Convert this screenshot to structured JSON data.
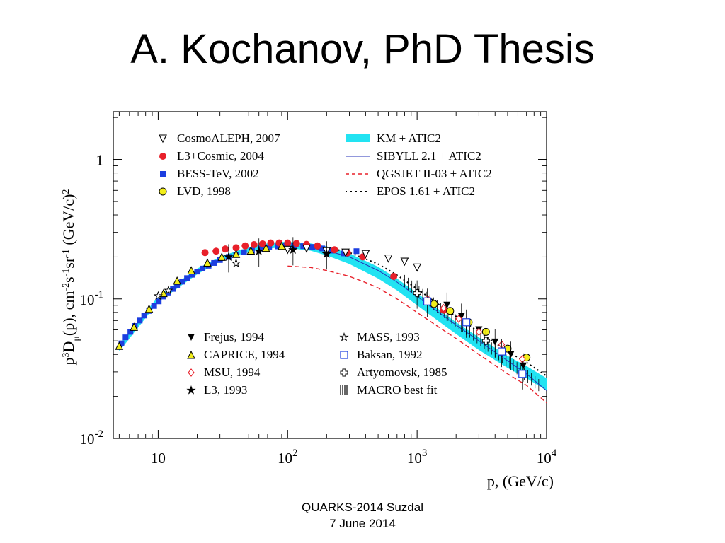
{
  "slide": {
    "title": "A. Kochanov, PhD Thesis",
    "footer_line1": "QUARKS-2014  Suzdal",
    "footer_line2": "7 June 2014"
  },
  "chart_data": {
    "type": "scatter",
    "xscale": "log",
    "yscale": "log",
    "xlim": [
      4.5,
      10000
    ],
    "ylim": [
      0.01,
      2.2
    ],
    "xticks": [
      {
        "value": 10,
        "base": "10",
        "exp": ""
      },
      {
        "value": 100,
        "base": "10",
        "exp": "2"
      },
      {
        "value": 1000,
        "base": "10",
        "exp": "3"
      },
      {
        "value": 10000,
        "base": "10",
        "exp": "4"
      }
    ],
    "yticks": [
      {
        "value": 1,
        "base": "1",
        "exp": ""
      },
      {
        "value": 0.1,
        "base": "10",
        "exp": "-1"
      },
      {
        "value": 0.01,
        "base": "10",
        "exp": "-2"
      }
    ],
    "xlabel": "p, (GeV/c)",
    "ylabel": {
      "p1": "p",
      "s1": "3",
      "p2": "D",
      "s2": "μ",
      "p3": "(p), cm",
      "s3": "-2",
      "p4": "s",
      "s4": "-1",
      "p5": "sr",
      "s5": "-1",
      "p6": " (GeV/c)",
      "s6": "2"
    },
    "legend_top_left": [
      {
        "label": "CosmoALEPH, 2007",
        "marker": "tri-down-open",
        "color": "#000000"
      },
      {
        "label": "L3+Cosmic, 2004",
        "marker": "circle",
        "color": "#e8202a"
      },
      {
        "label": "BESS-TeV, 2002",
        "marker": "square",
        "color": "#1c3ee0"
      },
      {
        "label": "LVD, 1998",
        "marker": "circle-yellow",
        "color": "#f2ee1a"
      }
    ],
    "legend_top_right": [
      {
        "label": "KM + ATIC2",
        "style": "band",
        "color": "#22e3f2"
      },
      {
        "label": "SIBYLL 2.1 + ATIC2",
        "style": "solid",
        "color": "#2430b8"
      },
      {
        "label": "QGSJET II-03 + ATIC2",
        "style": "dashed",
        "color": "#e8202a"
      },
      {
        "label": "EPOS 1.61 + ATIC2",
        "style": "dotted",
        "color": "#000000"
      }
    ],
    "legend_bottom_left": [
      {
        "label": "Frejus, 1994",
        "marker": "tri-down-filled",
        "color": "#000000"
      },
      {
        "label": "CAPRICE, 1994",
        "marker": "tri-up-yellow",
        "color": "#f2ee1a"
      },
      {
        "label": "MSU, 1994",
        "marker": "diamond-open",
        "color": "#e8202a"
      },
      {
        "label": "L3, 1993",
        "marker": "star-filled",
        "color": "#000000"
      }
    ],
    "legend_bottom_right": [
      {
        "label": "MASS, 1993",
        "marker": "star-open",
        "color": "#000000"
      },
      {
        "label": "Baksan, 1992",
        "marker": "square-open",
        "color": "#1c3ee0"
      },
      {
        "label": "Artyomovsk, 1985",
        "marker": "cross-open",
        "color": "#000000"
      },
      {
        "label": "MACRO best fit",
        "marker": "vlines",
        "color": "#000000"
      }
    ],
    "curves": {
      "km_band": {
        "x": [
          5,
          10,
          20,
          30,
          40,
          60,
          80,
          100,
          150,
          200,
          300,
          500,
          700,
          1000,
          1500,
          2000,
          3000,
          5000,
          7000,
          10000
        ],
        "ylow": [
          0.042,
          0.095,
          0.15,
          0.185,
          0.205,
          0.225,
          0.232,
          0.232,
          0.222,
          0.205,
          0.178,
          0.14,
          0.115,
          0.09,
          0.068,
          0.056,
          0.043,
          0.032,
          0.027,
          0.022
        ],
        "yhigh": [
          0.047,
          0.104,
          0.165,
          0.2,
          0.22,
          0.245,
          0.255,
          0.257,
          0.25,
          0.238,
          0.212,
          0.17,
          0.14,
          0.11,
          0.083,
          0.068,
          0.053,
          0.039,
          0.033,
          0.027
        ]
      },
      "sibyll": {
        "x": [
          100,
          150,
          200,
          300,
          500,
          700,
          1000,
          1500,
          2000,
          3000,
          5000,
          7000,
          10000
        ],
        "y": [
          0.24,
          0.232,
          0.222,
          0.2,
          0.16,
          0.132,
          0.104,
          0.079,
          0.065,
          0.05,
          0.036,
          0.029,
          0.022
        ]
      },
      "qgsjet": {
        "x": [
          100,
          150,
          200,
          300,
          400,
          500,
          700,
          1000,
          1500,
          2000,
          3000,
          5000,
          7000,
          10000
        ],
        "y": [
          0.172,
          0.168,
          0.16,
          0.145,
          0.131,
          0.12,
          0.1,
          0.08,
          0.062,
          0.052,
          0.04,
          0.029,
          0.024,
          0.018
        ]
      },
      "epos": {
        "x": [
          100,
          150,
          200,
          300,
          500,
          700,
          1000,
          1500,
          2000,
          3000,
          5000,
          7000,
          10000
        ],
        "y": [
          0.25,
          0.243,
          0.235,
          0.215,
          0.178,
          0.148,
          0.118,
          0.09,
          0.075,
          0.058,
          0.042,
          0.035,
          0.028
        ]
      }
    },
    "series": [
      {
        "name": "BESS-TeV, 2002",
        "marker": "square",
        "color": "#1c3ee0",
        "x": [
          5.2,
          5.6,
          6.1,
          6.6,
          7.2,
          7.8,
          8.5,
          9.3,
          10.1,
          11,
          12,
          13,
          14,
          15.3,
          16.7,
          18.2,
          20,
          22,
          24.5,
          27,
          30,
          35,
          40,
          46,
          53,
          62,
          72,
          84,
          97,
          112,
          132,
          155,
          185,
          220,
          270,
          340
        ],
        "y": [
          0.048,
          0.053,
          0.058,
          0.064,
          0.07,
          0.076,
          0.082,
          0.089,
          0.096,
          0.104,
          0.111,
          0.118,
          0.126,
          0.133,
          0.141,
          0.149,
          0.157,
          0.165,
          0.173,
          0.181,
          0.19,
          0.2,
          0.208,
          0.216,
          0.222,
          0.229,
          0.234,
          0.238,
          0.24,
          0.241,
          0.239,
          0.236,
          0.23,
          0.222,
          0.212,
          0.22
        ]
      },
      {
        "name": "L3+Cosmic, 2004",
        "marker": "circle",
        "color": "#e8202a",
        "x": [
          23,
          28,
          33,
          40,
          47,
          55,
          64,
          74,
          86,
          100,
          117,
          140,
          170,
          230,
          290,
          380,
          660,
          1600
        ],
        "y": [
          0.215,
          0.22,
          0.228,
          0.233,
          0.24,
          0.245,
          0.248,
          0.252,
          0.252,
          0.252,
          0.25,
          0.246,
          0.24,
          0.225,
          0.214,
          0.2,
          0.145,
          0.083
        ]
      },
      {
        "name": "CosmoALEPH, 2007",
        "marker": "tri-down-open",
        "color": "#000000",
        "x": [
          100,
          140,
          200,
          280,
          400,
          600,
          800,
          1000
        ],
        "y": [
          0.225,
          0.23,
          0.22,
          0.215,
          0.21,
          0.195,
          0.185,
          0.168
        ]
      },
      {
        "name": "LVD, 1998",
        "marker": "circle-yellow",
        "color": "#f2ee1a",
        "x": [
          1350,
          1800,
          2500,
          3400,
          5000,
          7000
        ],
        "y": [
          0.092,
          0.082,
          0.068,
          0.058,
          0.044,
          0.038
        ]
      },
      {
        "name": "CAPRICE, 1994",
        "marker": "tri-up-yellow",
        "color": "#f2ee1a",
        "x": [
          5,
          6.5,
          8.5,
          11,
          14,
          18,
          24,
          31,
          40,
          52,
          68,
          90
        ],
        "y": [
          0.046,
          0.063,
          0.085,
          0.11,
          0.135,
          0.16,
          0.182,
          0.2,
          0.21,
          0.222,
          0.232,
          0.24
        ]
      },
      {
        "name": "Frejus, 1994",
        "marker": "tri-down-filled",
        "color": "#000000",
        "x": [
          1700,
          2200,
          3000,
          4000,
          5300,
          6600
        ],
        "y": [
          0.09,
          0.075,
          0.06,
          0.049,
          0.04,
          0.033
        ]
      },
      {
        "name": "MSU, 1994",
        "marker": "diamond-open",
        "color": "#e8202a",
        "x": [
          1200,
          1600,
          2100,
          3000,
          4500,
          6500
        ],
        "y": [
          0.1,
          0.086,
          0.072,
          0.058,
          0.047,
          0.037
        ]
      },
      {
        "name": "L3, 1993",
        "marker": "star-filled",
        "color": "#000000",
        "x": [
          35,
          60,
          110,
          200
        ],
        "y": [
          0.2,
          0.22,
          0.225,
          0.21
        ]
      },
      {
        "name": "MASS, 1993",
        "marker": "star-open",
        "color": "#000000",
        "x": [
          10,
          40,
          12
        ],
        "y": [
          0.105,
          0.18,
          0.115
        ]
      },
      {
        "name": "Baksan, 1992",
        "marker": "square-open",
        "color": "#1c3ee0",
        "x": [
          1200,
          2400,
          4500,
          6500
        ],
        "y": [
          0.096,
          0.068,
          0.042,
          0.029
        ]
      },
      {
        "name": "Artyomovsk, 1985",
        "marker": "cross-open",
        "color": "#000000",
        "x": [
          1000,
          3400
        ],
        "y": [
          0.11,
          0.05
        ]
      }
    ]
  }
}
